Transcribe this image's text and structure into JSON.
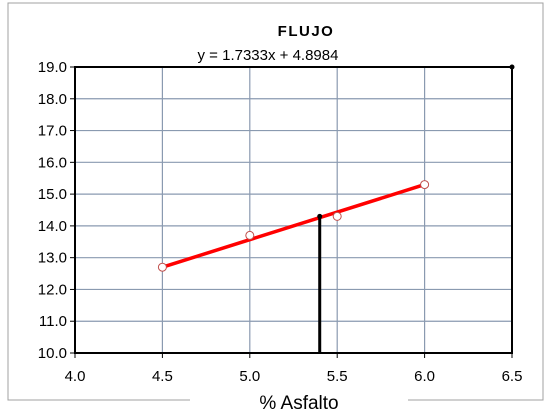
{
  "chart_data": {
    "type": "scatter",
    "title": "FLUJO",
    "subtitle": "y = 1.7333x + 4.8984",
    "xlabel": "% Asfalto",
    "ylabel": "",
    "xlim": [
      4.0,
      6.5
    ],
    "ylim": [
      10.0,
      19.0
    ],
    "x_ticks": [
      "4.0",
      "4.5",
      "5.0",
      "5.5",
      "6.0",
      "6.5"
    ],
    "y_ticks": [
      "10.0",
      "11.0",
      "12.0",
      "13.0",
      "14.0",
      "15.0",
      "16.0",
      "17.0",
      "18.0",
      "19.0"
    ],
    "grid": true,
    "series": [
      {
        "type": "scatter",
        "x": [
          4.5,
          5.0,
          5.5,
          6.0
        ],
        "y": [
          12.7,
          13.7,
          14.3,
          15.3
        ],
        "color": "#c0504d"
      }
    ],
    "trendline": {
      "x": [
        4.5,
        6.0
      ],
      "y": [
        12.7,
        15.3
      ],
      "color": "#ff0000"
    },
    "marker_line": {
      "x": 5.4,
      "y_from": 10.0,
      "y_to": 14.3,
      "color": "#000000"
    },
    "gridline_color": "#8a9ab0"
  }
}
